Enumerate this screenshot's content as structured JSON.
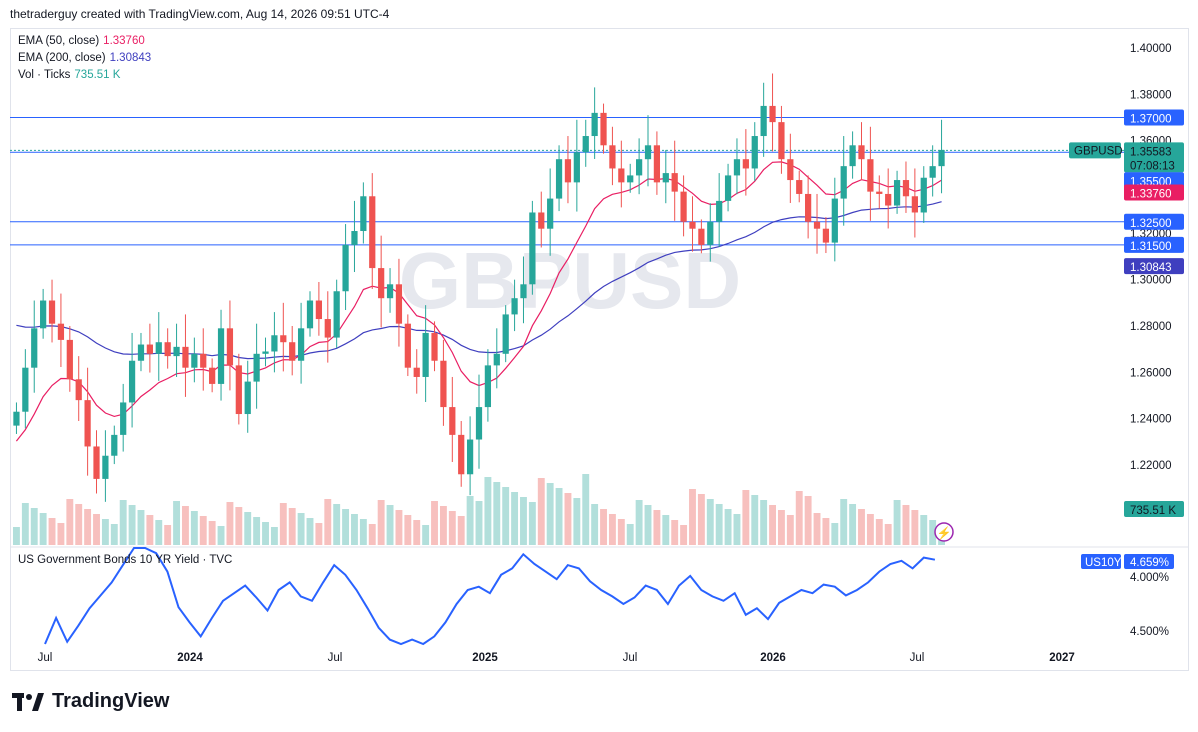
{
  "header": {
    "text": "thetraderguy created with TradingView.com, Aug 14, 2026 09:51 UTC-4"
  },
  "legend": {
    "ema50": {
      "label": "EMA (50, close)",
      "value": "1.33760",
      "color": "#e91e63"
    },
    "ema200": {
      "label": "EMA (200, close)",
      "value": "1.30843",
      "color": "#3f3fbf"
    },
    "volume": {
      "label": "Vol · Ticks",
      "value": "735.51 K",
      "color": "#26a69a"
    }
  },
  "watermark": "GBPUSD",
  "price_axis": {
    "ticks": [
      "1.40000",
      "1.38000",
      "1.36000",
      "1.34000",
      "1.32000",
      "1.30000",
      "1.28000",
      "1.26000",
      "1.24000",
      "1.22000"
    ],
    "badges": {
      "level_1": "1.37000",
      "symbol": "GBPUSD",
      "price": "1.35583",
      "countdown": "07:08:13",
      "level_2": "1.35500",
      "ema50": "1.33760",
      "level_3": "1.32500",
      "level_4": "1.31500",
      "ema200": "1.30843",
      "volume": "735.51 K"
    }
  },
  "lower_pane": {
    "title": "US Government Bonds 10 YR Yield · TVC",
    "ticks": [
      "4.500%",
      "4.000%"
    ],
    "badge_symbol": "US10Y",
    "badge_value": "4.659%"
  },
  "time_axis": {
    "labels": [
      "Jul",
      "2024",
      "Jul",
      "2025",
      "Jul",
      "2026",
      "Jul",
      "2027"
    ]
  },
  "footer": {
    "brand": "TradingView"
  },
  "colors": {
    "up": "#26a69a",
    "down": "#ef5350",
    "levels": "#2962ff",
    "ema50": "#e91e63",
    "ema200": "#3f3fbf",
    "yield": "#2962ff",
    "up_vol": "#b2dfdb",
    "down_vol": "#f7c0be"
  },
  "chart_data": [
    {
      "type": "candlestick",
      "symbol": "GBPUSD",
      "timeframe": "weekly",
      "y_ticks": [
        1.22,
        1.24,
        1.26,
        1.28,
        1.3,
        1.32,
        1.34,
        1.36,
        1.38,
        1.4
      ],
      "x_labels": [
        "Jul",
        "2024",
        "Jul",
        "2025",
        "Jul",
        "2026",
        "Jul",
        "2027"
      ],
      "horizontal_levels": [
        1.37,
        1.355,
        1.325,
        1.315
      ],
      "last_price": 1.35583,
      "ema50_last": 1.3376,
      "ema200_last": 1.30843,
      "close_series_approx": [
        1.243,
        1.262,
        1.279,
        1.291,
        1.281,
        1.274,
        1.257,
        1.248,
        1.228,
        1.214,
        1.224,
        1.233,
        1.247,
        1.265,
        1.272,
        1.268,
        1.273,
        1.267,
        1.271,
        1.262,
        1.268,
        1.262,
        1.255,
        1.279,
        1.263,
        1.242,
        1.256,
        1.268,
        1.269,
        1.276,
        1.273,
        1.265,
        1.279,
        1.291,
        1.283,
        1.275,
        1.295,
        1.315,
        1.321,
        1.336,
        1.305,
        1.292,
        1.298,
        1.281,
        1.262,
        1.258,
        1.277,
        1.265,
        1.245,
        1.233,
        1.216,
        1.231,
        1.245,
        1.263,
        1.268,
        1.285,
        1.292,
        1.298,
        1.329,
        1.322,
        1.335,
        1.352,
        1.342,
        1.355,
        1.362,
        1.372,
        1.358,
        1.348,
        1.342,
        1.345,
        1.352,
        1.358,
        1.342,
        1.346,
        1.338,
        1.325,
        1.322,
        1.315,
        1.325,
        1.334,
        1.345,
        1.352,
        1.348,
        1.362,
        1.375,
        1.368,
        1.352,
        1.343,
        1.337,
        1.325,
        1.322,
        1.316,
        1.335,
        1.349,
        1.358,
        1.352,
        1.338,
        1.337,
        1.332,
        1.343,
        1.336,
        1.329,
        1.344,
        1.349,
        1.356
      ],
      "volume_last": "735.51 K"
    },
    {
      "type": "line",
      "name": "US Government Bonds 10 YR Yield · TVC",
      "y_ticks": [
        4.0,
        4.5
      ],
      "last_value": 4.659,
      "values_approx": [
        3.85,
        4.12,
        3.9,
        4.05,
        4.21,
        4.33,
        4.45,
        4.61,
        4.82,
        4.98,
        4.72,
        4.55,
        4.22,
        4.08,
        3.95,
        4.12,
        4.28,
        4.35,
        4.42,
        4.31,
        4.19,
        4.38,
        4.45,
        4.32,
        4.28,
        4.45,
        4.61,
        4.52,
        4.38,
        4.21,
        4.03,
        3.92,
        3.85,
        3.92,
        3.78,
        3.95,
        4.08,
        4.25,
        4.38,
        4.41,
        4.35,
        4.52,
        4.58,
        4.71,
        4.62,
        4.55,
        4.48,
        4.61,
        4.58,
        4.46,
        4.38,
        4.32,
        4.25,
        4.31,
        4.42,
        4.38,
        4.25,
        4.42,
        4.51,
        4.38,
        4.32,
        4.28,
        4.35,
        4.15,
        4.21,
        4.11,
        4.26,
        4.32,
        4.38,
        4.35,
        4.43,
        4.41,
        4.33,
        4.38,
        4.45,
        4.55,
        4.62,
        4.65,
        4.58,
        4.68,
        4.66
      ],
      "axis_ticks_display": [
        "4.500%",
        "4.000%"
      ]
    }
  ]
}
